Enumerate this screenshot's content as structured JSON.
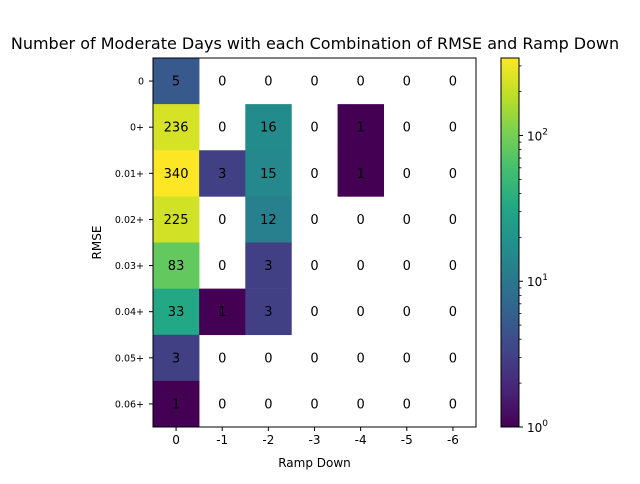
{
  "chart_data": {
    "type": "heatmap",
    "title": "Number of Moderate Days with each Combination of RMSE and Ramp Down",
    "xlabel": "Ramp Down",
    "ylabel": "RMSE",
    "x_categories": [
      "0",
      "-1",
      "-2",
      "-3",
      "-4",
      "-5",
      "-6"
    ],
    "y_categories": [
      "0",
      "0+",
      "0.01+",
      "0.02+",
      "0.03+",
      "0.04+",
      "0.05+",
      "0.06+"
    ],
    "values": [
      [
        5,
        0,
        0,
        0,
        0,
        0,
        0
      ],
      [
        236,
        0,
        16,
        0,
        1,
        0,
        0
      ],
      [
        340,
        3,
        15,
        0,
        1,
        0,
        0
      ],
      [
        225,
        0,
        12,
        0,
        0,
        0,
        0
      ],
      [
        83,
        0,
        3,
        0,
        0,
        0,
        0
      ],
      [
        33,
        1,
        3,
        0,
        0,
        0,
        0
      ],
      [
        3,
        0,
        0,
        0,
        0,
        0,
        0
      ],
      [
        1,
        0,
        0,
        0,
        0,
        0,
        0
      ]
    ],
    "colorscale": "viridis",
    "color_scale_type": "log",
    "zero_cells": "blank",
    "colorbar": {
      "range": [
        1,
        340
      ],
      "tick_labels": [
        "10^0",
        "10^1",
        "10^2"
      ],
      "tick_values": [
        1,
        10,
        100
      ]
    }
  }
}
